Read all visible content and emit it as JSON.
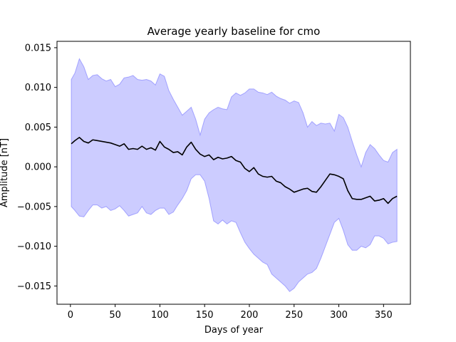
{
  "chart_data": {
    "type": "line",
    "title": "Average yearly baseline for cmo",
    "xlabel": "Days of year",
    "ylabel": "Amplitude [nT]",
    "xlim": [
      -15,
      380
    ],
    "ylim": [
      -0.0173,
      0.0158
    ],
    "x_ticks": [
      0,
      50,
      100,
      150,
      200,
      250,
      300,
      350
    ],
    "y_ticks": [
      -0.015,
      -0.01,
      -0.005,
      0.0,
      0.005,
      0.01,
      0.015
    ],
    "y_tick_labels": [
      "−0.015",
      "−0.010",
      "−0.005",
      "0.000",
      "0.005",
      "0.010",
      "0.015"
    ],
    "grid": false,
    "series": [
      {
        "role": "mean",
        "color": "#000000",
        "x": [
          1,
          5,
          10,
          15,
          20,
          25,
          30,
          35,
          40,
          45,
          50,
          55,
          60,
          65,
          70,
          75,
          80,
          85,
          90,
          95,
          100,
          105,
          110,
          115,
          120,
          125,
          130,
          135,
          140,
          145,
          150,
          155,
          160,
          165,
          170,
          175,
          180,
          185,
          190,
          195,
          200,
          205,
          210,
          215,
          220,
          225,
          230,
          235,
          240,
          245,
          250,
          255,
          260,
          265,
          270,
          275,
          280,
          285,
          290,
          295,
          300,
          305,
          310,
          315,
          320,
          325,
          330,
          335,
          340,
          345,
          350,
          355,
          360,
          365
        ],
        "y": [
          0.0029,
          0.0033,
          0.0037,
          0.0032,
          0.003,
          0.0034,
          0.0033,
          0.0032,
          0.0031,
          0.003,
          0.0028,
          0.0026,
          0.0029,
          0.0022,
          0.0023,
          0.0022,
          0.0026,
          0.0022,
          0.0024,
          0.0021,
          0.0032,
          0.0025,
          0.0022,
          0.0018,
          0.0019,
          0.0015,
          0.0025,
          0.0031,
          0.0022,
          0.0016,
          0.0013,
          0.0015,
          0.0009,
          0.0012,
          0.001,
          0.0011,
          0.0013,
          0.0008,
          0.0006,
          -0.0002,
          -0.0006,
          -0.0001,
          -0.0009,
          -0.0012,
          -0.0013,
          -0.0012,
          -0.0018,
          -0.002,
          -0.0025,
          -0.0028,
          -0.0032,
          -0.003,
          -0.0028,
          -0.0027,
          -0.0031,
          -0.0032,
          -0.0025,
          -0.0017,
          -0.0009,
          -0.001,
          -0.0012,
          -0.0015,
          -0.003,
          -0.004,
          -0.0041,
          -0.0041,
          -0.0039,
          -0.0037,
          -0.0043,
          -0.0042,
          -0.004,
          -0.0046,
          -0.004,
          -0.0037
        ]
      },
      {
        "role": "upper-bound",
        "color": "#7777ff",
        "x": [
          1,
          5,
          10,
          15,
          20,
          25,
          30,
          35,
          40,
          45,
          50,
          55,
          60,
          65,
          70,
          75,
          80,
          85,
          90,
          95,
          100,
          105,
          110,
          115,
          120,
          125,
          130,
          135,
          140,
          145,
          150,
          155,
          160,
          165,
          170,
          175,
          180,
          185,
          190,
          195,
          200,
          205,
          210,
          215,
          220,
          225,
          230,
          235,
          240,
          245,
          250,
          255,
          260,
          265,
          270,
          275,
          280,
          285,
          290,
          295,
          300,
          305,
          310,
          315,
          320,
          325,
          330,
          335,
          340,
          345,
          350,
          355,
          360,
          365
        ],
        "y": [
          0.011,
          0.0118,
          0.0136,
          0.0126,
          0.011,
          0.0115,
          0.0116,
          0.0111,
          0.0108,
          0.011,
          0.0101,
          0.0104,
          0.0112,
          0.0113,
          0.0115,
          0.011,
          0.0109,
          0.011,
          0.0108,
          0.0103,
          0.0117,
          0.0114,
          0.0096,
          0.0085,
          0.0075,
          0.0065,
          0.007,
          0.0075,
          0.006,
          0.004,
          0.006,
          0.0068,
          0.0072,
          0.0075,
          0.0073,
          0.0072,
          0.0088,
          0.0093,
          0.009,
          0.0093,
          0.0098,
          0.0098,
          0.0094,
          0.0093,
          0.0091,
          0.0094,
          0.0089,
          0.0086,
          0.0084,
          0.008,
          0.0083,
          0.0081,
          0.0068,
          0.005,
          0.0057,
          0.0052,
          0.0055,
          0.0054,
          0.0055,
          0.0045,
          0.0066,
          0.0062,
          0.005,
          0.0032,
          0.0015,
          0.0,
          0.0018,
          0.0028,
          0.0023,
          0.0015,
          0.0008,
          0.0006,
          0.0018,
          0.0022
        ]
      },
      {
        "role": "lower-bound",
        "color": "#7777ff",
        "x": [
          1,
          5,
          10,
          15,
          20,
          25,
          30,
          35,
          40,
          45,
          50,
          55,
          60,
          65,
          70,
          75,
          80,
          85,
          90,
          95,
          100,
          105,
          110,
          115,
          120,
          125,
          130,
          135,
          140,
          145,
          150,
          155,
          160,
          165,
          170,
          175,
          180,
          185,
          190,
          195,
          200,
          205,
          210,
          215,
          220,
          225,
          230,
          235,
          240,
          245,
          250,
          255,
          260,
          265,
          270,
          275,
          280,
          285,
          290,
          295,
          300,
          305,
          310,
          315,
          320,
          325,
          330,
          335,
          340,
          345,
          350,
          355,
          360,
          365
        ],
        "y": [
          -0.005,
          -0.0055,
          -0.0062,
          -0.0063,
          -0.0055,
          -0.0048,
          -0.0048,
          -0.0052,
          -0.005,
          -0.0055,
          -0.0053,
          -0.0049,
          -0.0055,
          -0.0062,
          -0.006,
          -0.0058,
          -0.005,
          -0.0058,
          -0.006,
          -0.0055,
          -0.0052,
          -0.0052,
          -0.006,
          -0.0057,
          -0.0048,
          -0.004,
          -0.003,
          -0.0015,
          -0.001,
          -0.001,
          -0.0018,
          -0.004,
          -0.0068,
          -0.0072,
          -0.0067,
          -0.0072,
          -0.0068,
          -0.007,
          -0.0083,
          -0.0095,
          -0.0103,
          -0.011,
          -0.0115,
          -0.012,
          -0.0123,
          -0.0135,
          -0.014,
          -0.0145,
          -0.015,
          -0.0157,
          -0.0153,
          -0.0145,
          -0.014,
          -0.0135,
          -0.0133,
          -0.0128,
          -0.0115,
          -0.01,
          -0.0085,
          -0.007,
          -0.0065,
          -0.008,
          -0.0098,
          -0.0105,
          -0.0105,
          -0.01,
          -0.0102,
          -0.0098,
          -0.0087,
          -0.0087,
          -0.009,
          -0.0097,
          -0.0095,
          -0.0094
        ]
      }
    ]
  }
}
